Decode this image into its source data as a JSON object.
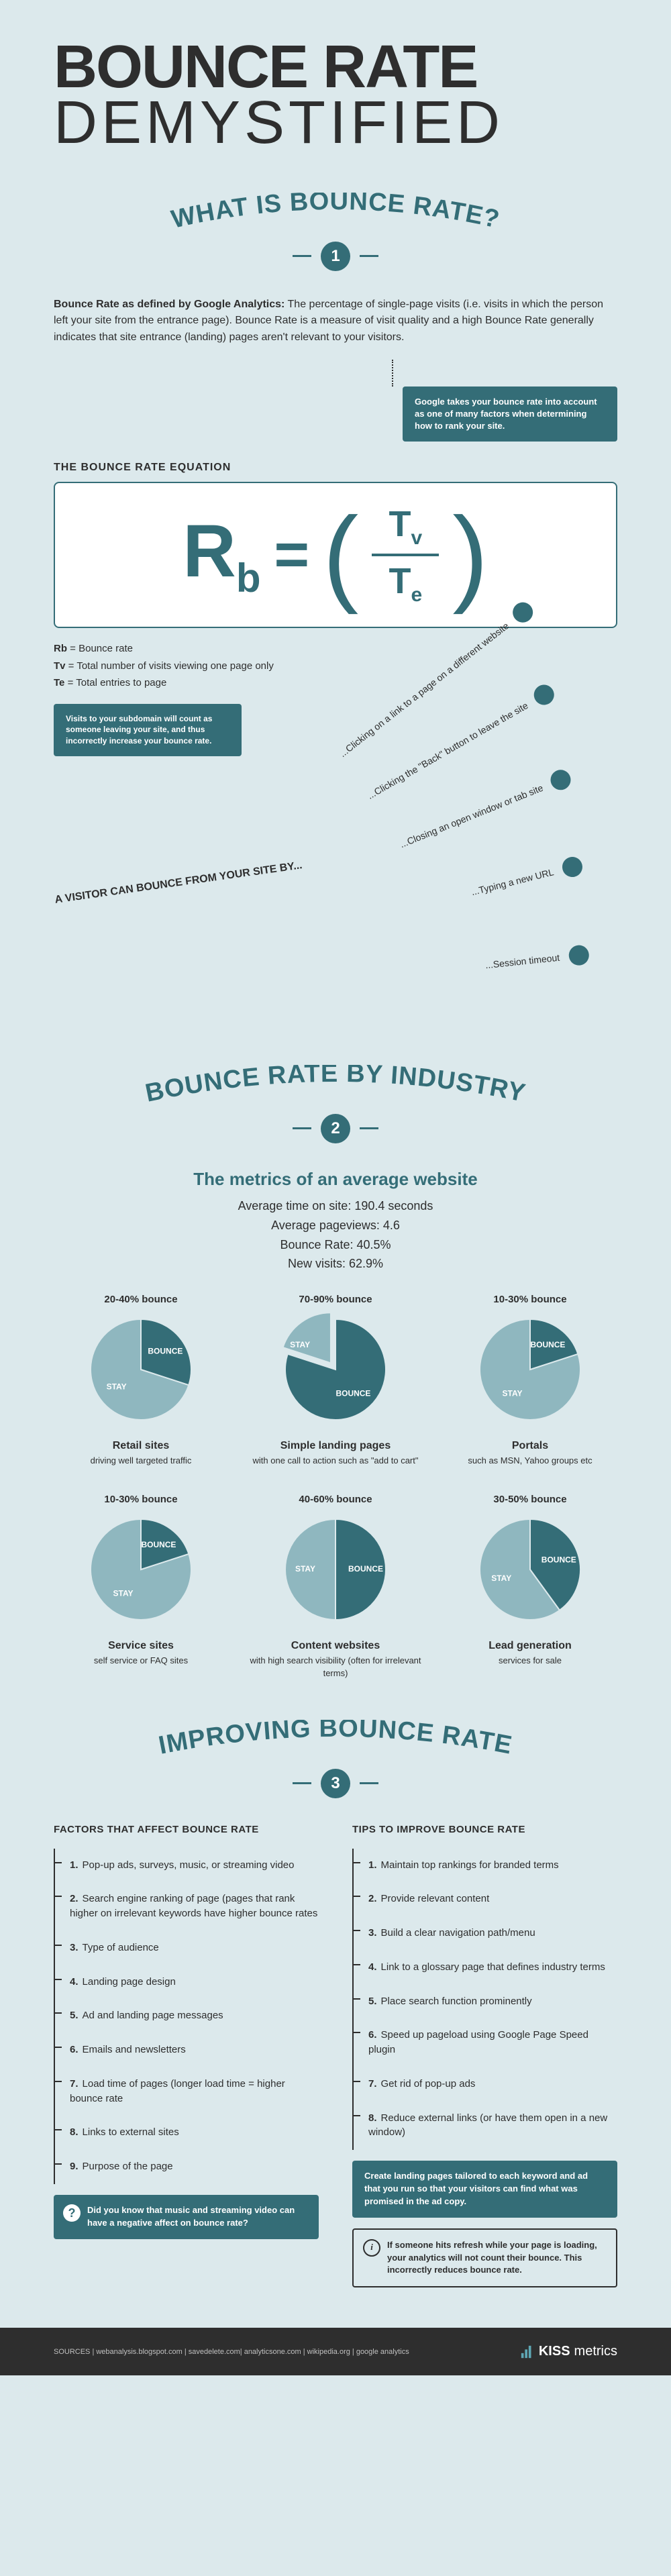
{
  "colors": {
    "background": "#dce9ec",
    "primary": "#346d77",
    "text": "#2e2e2e",
    "white": "#ffffff",
    "pie_stay": "#8fb7bf",
    "pie_bounce": "#346d77",
    "footer_bg": "#2e2e2e"
  },
  "header": {
    "title": "BOUNCE RATE",
    "subtitle": "DEMYSTIFIED"
  },
  "section1": {
    "title": "WHAT IS BOUNCE RATE?",
    "number": "1",
    "definition_lead": "Bounce Rate as defined by Google Analytics:",
    "definition_body": " The percentage of single-page visits (i.e. visits in which the person left your site from the entrance page). Bounce Rate is a measure of visit quality and a high Bounce Rate generally indicates that site entrance (landing) pages aren't relevant to your visitors.",
    "callout1": "Google takes your bounce rate into account as one of many factors when determining how to rank your site.",
    "equation_label": "THE BOUNCE RATE EQUATION",
    "equation_defs": [
      {
        "sym": "Rb",
        "text": "Bounce rate"
      },
      {
        "sym": "Tv",
        "text": "Total number of visits viewing one page only"
      },
      {
        "sym": "Te",
        "text": "Total entries to page"
      }
    ],
    "callout2": "Visits to your subdomain will count as someone leaving your site, and thus incorrectly increase your bounce rate.",
    "bounce_from_label": "A VISITOR CAN BOUNCE FROM YOUR SITE BY...",
    "bounce_ways": [
      "...Clicking on a link to a page on a different website",
      "...Clicking the \"Back\" button to leave the site",
      "...Closing an open window or tab site",
      "...Typing a new URL",
      "...Session timeout"
    ]
  },
  "section2": {
    "title": "BOUNCE RATE BY INDUSTRY",
    "number": "2",
    "metrics_title": "The metrics of an average website",
    "metrics": [
      "Average time on site: 190.4 seconds",
      "Average pageviews: 4.6",
      "Bounce Rate: 40.5%",
      "New visits: 62.9%"
    ],
    "pies": [
      {
        "range": "20-40% bounce",
        "bounce_pct": 30,
        "name": "Retail sites",
        "desc": "driving well targeted traffic",
        "exploded": false
      },
      {
        "range": "70-90% bounce",
        "bounce_pct": 80,
        "name": "Simple landing pages",
        "desc": "with one call to action such as \"add to cart\"",
        "exploded": true
      },
      {
        "range": "10-30% bounce",
        "bounce_pct": 20,
        "name": "Portals",
        "desc": "such as MSN, Yahoo groups etc",
        "exploded": false
      },
      {
        "range": "10-30% bounce",
        "bounce_pct": 20,
        "name": "Service sites",
        "desc": "self service or FAQ sites",
        "exploded": false
      },
      {
        "range": "40-60% bounce",
        "bounce_pct": 50,
        "name": "Content websites",
        "desc": "with high search visibility (often for irrelevant terms)",
        "exploded": false
      },
      {
        "range": "30-50% bounce",
        "bounce_pct": 40,
        "name": "Lead generation",
        "desc": "services for sale",
        "exploded": false
      }
    ],
    "pie_labels": {
      "bounce": "BOUNCE",
      "stay": "STAY"
    }
  },
  "section3": {
    "title": "IMPROVING BOUNCE RATE",
    "number": "3",
    "left_title": "FACTORS THAT AFFECT BOUNCE RATE",
    "right_title": "TIPS TO IMPROVE BOUNCE RATE",
    "factors": [
      "Pop-up ads, surveys, music, or streaming video",
      "Search engine ranking of page (pages that rank higher on irrelevant keywords have higher bounce rates",
      "Type of audience",
      "Landing page design",
      "Ad and landing page messages",
      "Emails and newsletters",
      "Load time of pages (longer load time = higher bounce rate",
      "Links to external sites",
      "Purpose of the page"
    ],
    "tips": [
      "Maintain top rankings for branded terms",
      "Provide relevant content",
      "Build a clear navigation path/menu",
      "Link to a glossary page that defines industry terms",
      "Place search function prominently",
      "Speed up pageload using Google Page Speed plugin",
      "Get rid of pop-up ads",
      "Reduce external links (or have them open in a new window)"
    ],
    "q_callout": "Did you know that music and streaming video can have a negative affect on bounce rate?",
    "tip_callout": "Create landing pages tailored to each keyword and ad that you run so that your visitors can find what was promised in the ad copy.",
    "info_callout": "If someone hits refresh while your page is loading, your analytics will not count their bounce. This incorrectly reduces bounce rate."
  },
  "footer": {
    "sources": "SOURCES | webanalysis.blogspot.com | savedelete.com| analyticsone.com | wikipedia.org | google analytics",
    "brand_k": "KISS",
    "brand_m": "metrics"
  }
}
